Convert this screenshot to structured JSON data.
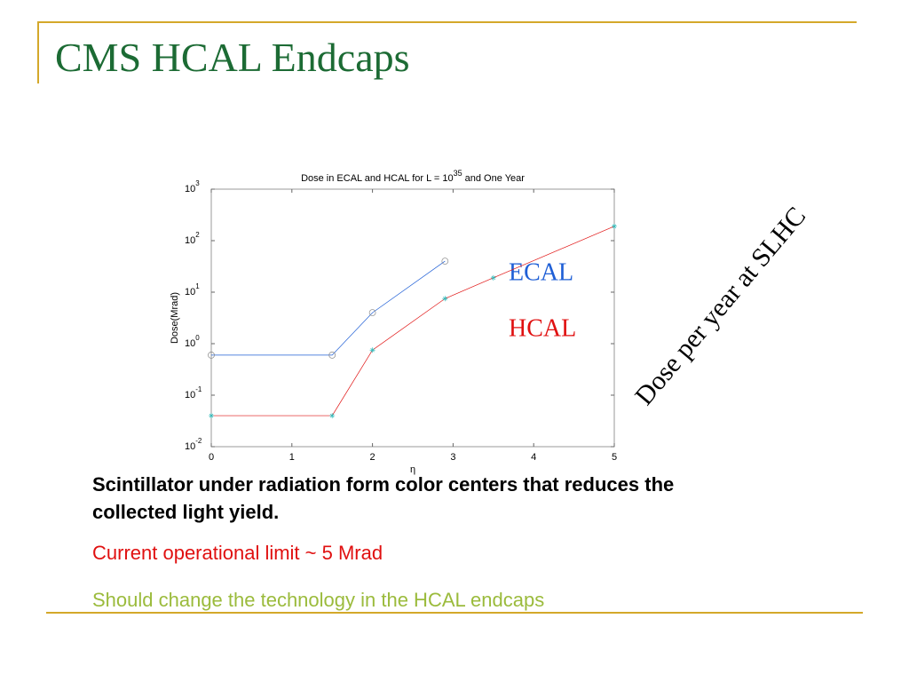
{
  "slide": {
    "title": "CMS HCAL Endcaps",
    "side_note": "Dose per year at SLHC",
    "bullets": [
      "Scintillator under radiation form color centers that reduces the collected light yield.",
      "Current operational limit ~ 5 Mrad",
      "Should change the technology in the HCAL endcaps"
    ]
  },
  "chart_data": {
    "type": "line",
    "title": [
      "Dose in ECAL and HCAL for L = 10",
      "35",
      " and One Year"
    ],
    "x_label": "η",
    "y_label": "Dose(Mrad)",
    "log_y": true,
    "xlim": [
      0,
      5
    ],
    "xticks": [
      0,
      1,
      2,
      3,
      4,
      5
    ],
    "ylim": [
      0.01,
      1000
    ],
    "yticks": [
      {
        "value": 1000,
        "label": "10",
        "exponent": "3"
      },
      {
        "value": 100,
        "label": "10",
        "exponent": "2"
      },
      {
        "value": 10,
        "label": "10",
        "exponent": "1"
      },
      {
        "value": 1,
        "label": "10",
        "exponent": "0"
      },
      {
        "value": 0.1,
        "label": "10",
        "exponent": "-1"
      },
      {
        "value": 0.01,
        "label": "10",
        "exponent": "-2"
      }
    ],
    "series": [
      {
        "name": "ECAL",
        "color": "#1f5fd6",
        "marker": "circle",
        "x": [
          0,
          1.5,
          2,
          2.9
        ],
        "values": [
          0.6,
          0.6,
          4,
          40
        ]
      },
      {
        "name": "HCAL",
        "color": "#e01010",
        "marker": "star",
        "x": [
          0,
          1.5,
          2,
          2.9,
          3.5,
          5
        ],
        "values": [
          0.04,
          0.04,
          0.75,
          7.5,
          19,
          190
        ]
      }
    ]
  }
}
